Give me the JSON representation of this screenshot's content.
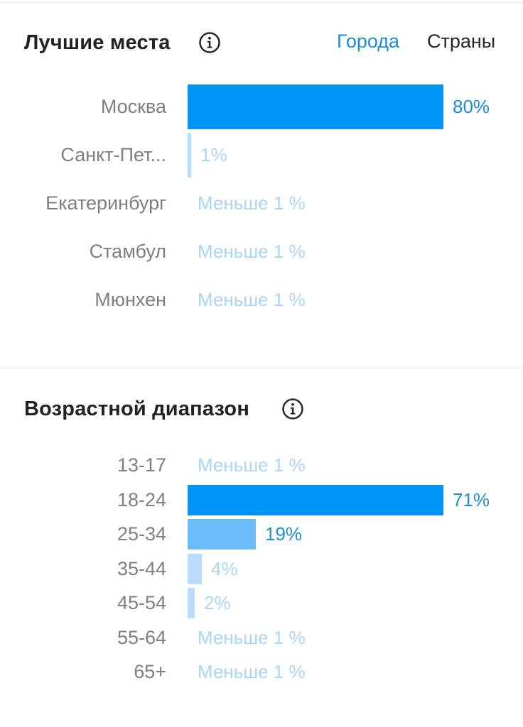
{
  "places": {
    "title": "Лучшие места",
    "tabs": [
      {
        "label": "Города",
        "active": true
      },
      {
        "label": "Страны",
        "active": false
      }
    ],
    "chart_data": {
      "type": "bar",
      "orientation": "horizontal",
      "categories": [
        "Москва",
        "Санкт-Пет...",
        "Екатеринбург",
        "Стамбул",
        "Мюнхен"
      ],
      "values": [
        80,
        1,
        0.5,
        0.5,
        0.5
      ],
      "value_labels": [
        "80%",
        "1%",
        "Меньше 1 %",
        "Меньше 1 %",
        "Меньше 1 %"
      ],
      "xlim": [
        0,
        80
      ]
    }
  },
  "age": {
    "title": "Возрастной диапазон",
    "chart_data": {
      "type": "bar",
      "orientation": "horizontal",
      "categories": [
        "13-17",
        "18-24",
        "25-34",
        "35-44",
        "45-54",
        "55-64",
        "65+"
      ],
      "values": [
        0.5,
        71,
        19,
        4,
        2,
        0.5,
        0.5
      ],
      "value_labels": [
        "Меньше 1 %",
        "71%",
        "19%",
        "4%",
        "2%",
        "Меньше 1 %",
        "Меньше 1 %"
      ],
      "xlim": [
        0,
        71
      ]
    }
  },
  "colors": {
    "primary": "#0095f6",
    "medium": "#6dbcfa",
    "light": "#b7dcfc",
    "primary_text": "#1a8ddb",
    "light_text": "#aad4f8",
    "label": "#7f7f7f"
  }
}
